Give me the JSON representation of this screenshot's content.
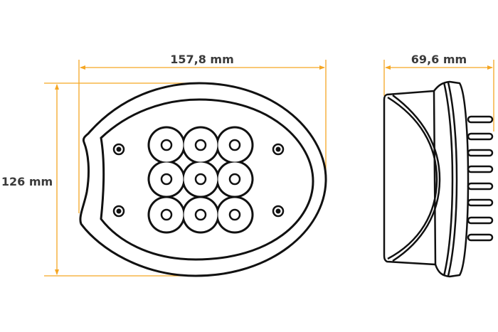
{
  "dimensions": {
    "width_label": "157,8 mm",
    "height_label": "126 mm",
    "depth_label": "69,6 mm"
  },
  "colors": {
    "dimension_line": "#f5a623",
    "outline": "#111111",
    "label": "#3a3a3a"
  }
}
